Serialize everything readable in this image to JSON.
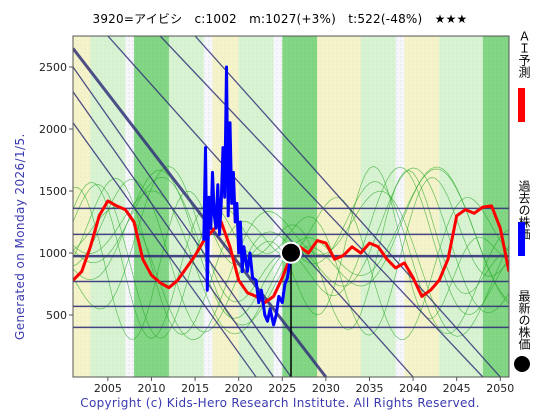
{
  "header": {
    "title": "3920=アイビシ　c:1002　m:1027(+3%)　t:522(-48%)　★★★"
  },
  "side": {
    "generated": "Generated on Monday 2026/1/5.",
    "forecast_label": "ＡＩ予測",
    "past_label": "過去の株価",
    "latest_label": "最新の株価"
  },
  "footer": {
    "copyright": "Copyright (c) Kids-Hero Research Institute. All Rights Reserved."
  },
  "colors": {
    "forecast": "#ff0000",
    "past": "#0000ff",
    "latest": "#000000",
    "trend_lines": "#33337a",
    "band_green": "#22bb22",
    "band_light_green": "#bff0b0",
    "band_yellow": "#f4f0a0"
  },
  "chart_data": {
    "type": "line",
    "title": "3920=アイビシ　c:1002　m:1027(+3%)　t:522(-48%)　★★★",
    "xlim": [
      2001,
      2051
    ],
    "ylim": [
      0,
      2750
    ],
    "x_ticks": [
      2005,
      2010,
      2015,
      2020,
      2025,
      2030,
      2035,
      2040,
      2045,
      2050
    ],
    "y_ticks": [
      500,
      1000,
      1500,
      2000,
      2500
    ],
    "grid": false,
    "legend": "right-vertical",
    "series": [
      {
        "name": "ＡＩ予測",
        "x": [
          2001,
          2002,
          2003,
          2004,
          2005,
          2006,
          2007,
          2008,
          2009,
          2010,
          2011,
          2012,
          2013,
          2014,
          2015,
          2016,
          2017,
          2018,
          2019,
          2020,
          2021,
          2022,
          2023,
          2024,
          2025,
          2026,
          2027,
          2028,
          2029,
          2030,
          2031,
          2032,
          2033,
          2034,
          2035,
          2036,
          2037,
          2038,
          2039,
          2040,
          2041,
          2042,
          2043,
          2044,
          2045,
          2046,
          2047,
          2048,
          2049,
          2050,
          2051
        ],
        "y": [
          780,
          850,
          1050,
          1300,
          1420,
          1380,
          1350,
          1250,
          950,
          820,
          760,
          720,
          780,
          880,
          980,
          1100,
          1180,
          1250,
          1050,
          780,
          680,
          650,
          600,
          650,
          800,
          980,
          1050,
          1000,
          1100,
          1080,
          950,
          980,
          1050,
          1000,
          1080,
          1050,
          950,
          880,
          920,
          800,
          650,
          700,
          780,
          950,
          1300,
          1350,
          1320,
          1370,
          1380,
          1200,
          850
        ]
      },
      {
        "name": "過去の株価",
        "x": [
          2016.0,
          2016.2,
          2016.4,
          2016.6,
          2016.8,
          2017.0,
          2017.2,
          2017.4,
          2017.6,
          2017.8,
          2018.0,
          2018.2,
          2018.4,
          2018.6,
          2018.8,
          2019.0,
          2019.2,
          2019.4,
          2019.6,
          2019.8,
          2020.0,
          2020.2,
          2020.4,
          2020.6,
          2020.8,
          2021.0,
          2021.3,
          2021.6,
          2022.0,
          2022.3,
          2022.6,
          2023.0,
          2023.3,
          2023.6,
          2024.0,
          2024.3,
          2024.6,
          2025.0,
          2025.3,
          2025.6,
          2026.0
        ],
        "y": [
          1100,
          1850,
          700,
          1450,
          1200,
          1650,
          1300,
          1200,
          1550,
          1150,
          1400,
          1850,
          1450,
          2500,
          1300,
          2050,
          1400,
          1650,
          1250,
          1400,
          1000,
          1250,
          850,
          1050,
          950,
          850,
          1000,
          800,
          780,
          600,
          700,
          500,
          450,
          550,
          420,
          500,
          650,
          600,
          750,
          800,
          1002
        ]
      }
    ],
    "latest_point": {
      "x": 2026.0,
      "y": 1002
    }
  }
}
